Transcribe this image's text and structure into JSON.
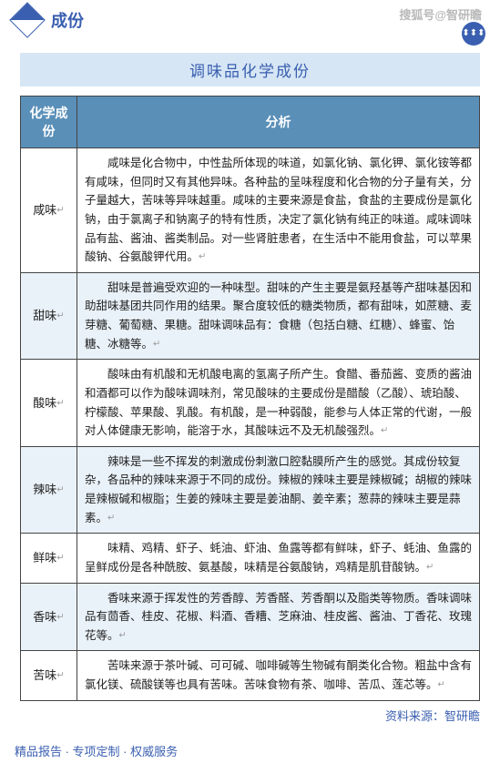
{
  "watermark": "搜狐号@智研瞻",
  "header": {
    "label": "成份",
    "icon_name": "diamond-icon"
  },
  "title_bar": "调味品化学成份",
  "table": {
    "header_col1": "化学成份",
    "header_col2": "分析",
    "rows": [
      {
        "name": "咸味",
        "striped": false,
        "analysis": "咸味是化合物中，中性盐所体现的味道，如氯化钠、氯化钾、氯化铵等都有咸味，但同时又有其他异味。各种盐的呈味程度和化合物的分子量有关，分子量越大，苦味等异味越重。咸味的主要来源是食盐，食盐的主要成份是氯化钠，由于氯离子和钠离子的特有性质，决定了氯化钠有纯正的味道。咸味调味品有盐、酱油、酱类制品。对一些肾脏患者，在生活中不能用食盐，可以苹果酸钠、谷氨酸钾代用。"
      },
      {
        "name": "甜味",
        "striped": true,
        "analysis": "甜味是普遍受欢迎的一种味型。甜味的产生主要是氨羟基等产甜味基因和助甜味基团共同作用的结果。聚合度较低的糖类物质，都有甜味，如蔗糖、麦芽糖、葡萄糖、果糖。甜味调味品有：食糖（包括白糖、红糖）、蜂蜜、饴糖、冰糖等。"
      },
      {
        "name": "酸味",
        "striped": false,
        "analysis": "酸味由有机酸和无机酸电离的氢离子所产生。食醋、番茄酱、变质的酱油和酒都可以作为酸味调味剂，常见酸味的主要成份是醋酸（乙酸）、琥珀酸、柠檬酸、苹果酸、乳酸。有机酸，是一种弱酸，能参与人体正常的代谢，一般对人体健康无影响，能溶于水，其酸味远不及无机酸强烈。"
      },
      {
        "name": "辣味",
        "striped": true,
        "analysis": "辣味是一些不挥发的刺激成份刺激口腔黏膜所产生的感觉。其成份较复杂，各品种的辣味来源于不同的成份。辣椒的辣味主要是辣椒碱；胡椒的辣味是辣椒碱和椒脂；生姜的辣味主要是姜油酮、姜辛素；葱蒜的辣味主要是蒜素。"
      },
      {
        "name": "鲜味",
        "striped": false,
        "analysis": "味精、鸡精、虾子、蚝油、虾油、鱼露等都有鲜味，虾子、蚝油、鱼露的呈鲜成份是各种酰胺、氨基酸，味精是谷氨酸钠，鸡精是肌苷酸钠。"
      },
      {
        "name": "香味",
        "striped": true,
        "analysis": "香味来源于挥发性的芳香醇、芳香醛、芳香酮以及脂类等物质。香味调味品有茴香、桂皮、花椒、料酒、香糟、芝麻油、桂皮酱、酱油、丁香花、玫瑰花等。"
      },
      {
        "name": "苦味",
        "striped": false,
        "analysis": "苦味来源于茶叶碱、可可碱、咖啡碱等生物碱有酮类化合物。粗盐中含有氯化镁、硫酸镁等也具有苦味。苦味食物有茶、咖啡、苦瓜、莲芯等。"
      }
    ]
  },
  "source": "资料来源：智研瞻",
  "footer": "精品报告 ·   专项定制 · 权威服务",
  "colors": {
    "accent": "#3a5fb0",
    "table_header_bg": "#5a8fb8",
    "stripe_bg": "#eaf2f9",
    "title_bg": "#d6e6f5"
  }
}
